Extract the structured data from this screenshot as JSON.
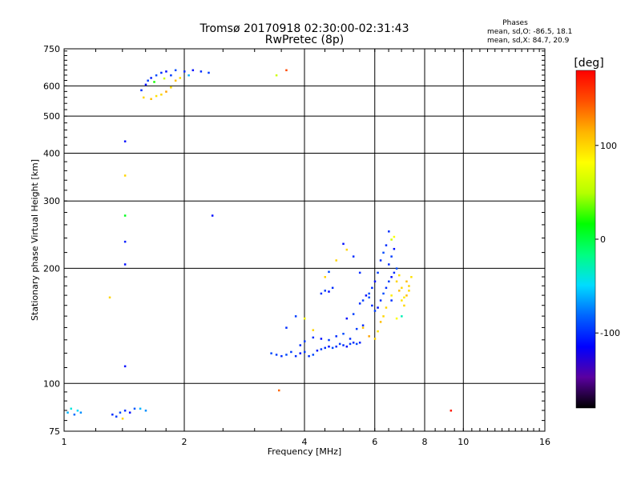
{
  "chart_data": {
    "type": "scatter",
    "title": "Tromsø 20170918 02:30:00-02:31:43",
    "subtitle": "RwPretec (8p)",
    "xlabel": "Frequency [MHz]",
    "ylabel": "Stationary phase Virtual Height [km]",
    "x_scale": "log",
    "y_scale": "log",
    "xlim": [
      1,
      16
    ],
    "ylim": [
      75,
      750
    ],
    "x_ticks": [
      1,
      2,
      4,
      6,
      8,
      10,
      16
    ],
    "y_ticks": [
      75,
      100,
      200,
      300,
      400,
      500,
      600,
      750
    ],
    "grid": true,
    "stats": {
      "heading": "Phases",
      "line_o": "mean, sd,O: -86.5, 18.1",
      "line_x": "mean, sd,X:  84.7, 20.9"
    },
    "colorbar": {
      "label": "[deg]",
      "range": [
        -180,
        180
      ],
      "ticks": [
        -100,
        0,
        100
      ],
      "colors": [
        "#000000",
        "#5a00a0",
        "#0000ff",
        "#0064ff",
        "#00dcff",
        "#00ff80",
        "#00ff00",
        "#b4ff00",
        "#ffff00",
        "#ffb400",
        "#ff5000",
        "#ff0000"
      ]
    },
    "series": [
      {
        "points": [
          [
            1.02,
            84,
            -60
          ],
          [
            1.04,
            86,
            -40
          ],
          [
            1.06,
            83,
            -80
          ],
          [
            1.08,
            85,
            -50
          ],
          [
            1.1,
            84,
            -70
          ],
          [
            1.32,
            83,
            -100
          ],
          [
            1.35,
            82,
            -95
          ],
          [
            1.38,
            84,
            -90
          ],
          [
            1.42,
            85,
            -100
          ],
          [
            1.46,
            84,
            -110
          ],
          [
            1.5,
            86,
            -85
          ],
          [
            1.55,
            86,
            -60
          ],
          [
            1.6,
            85,
            -70
          ],
          [
            1.4,
            81,
            100
          ],
          [
            1.56,
            585,
            -100
          ],
          [
            1.6,
            605,
            -110
          ],
          [
            1.62,
            620,
            -95
          ],
          [
            1.65,
            630,
            -105
          ],
          [
            1.7,
            640,
            -90
          ],
          [
            1.75,
            650,
            -100
          ],
          [
            1.8,
            655,
            -110
          ],
          [
            1.85,
            640,
            -95
          ],
          [
            1.9,
            660,
            -90
          ],
          [
            2.0,
            655,
            -100
          ],
          [
            2.1,
            660,
            -110
          ],
          [
            2.2,
            655,
            -100
          ],
          [
            2.3,
            650,
            -95
          ],
          [
            1.58,
            560,
            100
          ],
          [
            1.65,
            555,
            110
          ],
          [
            1.7,
            565,
            95
          ],
          [
            1.75,
            570,
            100
          ],
          [
            1.8,
            580,
            120
          ],
          [
            1.85,
            595,
            100
          ],
          [
            1.9,
            620,
            110
          ],
          [
            1.95,
            630,
            95
          ],
          [
            1.68,
            615,
            20
          ],
          [
            1.78,
            628,
            60
          ],
          [
            2.05,
            640,
            -60
          ],
          [
            3.4,
            640,
            60
          ],
          [
            3.6,
            660,
            150
          ],
          [
            1.42,
            430,
            -110
          ],
          [
            1.42,
            350,
            100
          ],
          [
            1.42,
            275,
            10
          ],
          [
            1.42,
            235,
            -105
          ],
          [
            1.42,
            205,
            -110
          ],
          [
            1.42,
            111,
            -110
          ],
          [
            2.35,
            275,
            -110
          ],
          [
            1.3,
            168,
            100
          ],
          [
            3.45,
            96,
            140
          ],
          [
            3.3,
            120,
            -90
          ],
          [
            3.4,
            119,
            -95
          ],
          [
            3.5,
            118,
            -100
          ],
          [
            3.6,
            119,
            -90
          ],
          [
            3.7,
            121,
            -95
          ],
          [
            3.8,
            118,
            -100
          ],
          [
            3.9,
            120,
            -110
          ],
          [
            4.0,
            121,
            -95
          ],
          [
            4.1,
            118,
            -100
          ],
          [
            4.2,
            119,
            -90
          ],
          [
            4.3,
            122,
            -105
          ],
          [
            4.4,
            123,
            -95
          ],
          [
            4.5,
            124,
            -100
          ],
          [
            4.6,
            125,
            -110
          ],
          [
            4.7,
            124,
            -90
          ],
          [
            4.8,
            125,
            -100
          ],
          [
            4.9,
            127,
            -95
          ],
          [
            5.0,
            126,
            -100
          ],
          [
            5.1,
            125,
            -110
          ],
          [
            5.2,
            127,
            -95
          ],
          [
            5.3,
            128,
            -100
          ],
          [
            5.4,
            127,
            -90
          ],
          [
            5.5,
            128,
            -105
          ],
          [
            3.9,
            126,
            -100
          ],
          [
            4.0,
            129,
            -95
          ],
          [
            4.2,
            132,
            -100
          ],
          [
            4.4,
            131,
            -110
          ],
          [
            4.6,
            130,
            -95
          ],
          [
            4.8,
            133,
            -100
          ],
          [
            5.0,
            135,
            -90
          ],
          [
            5.2,
            131,
            -100
          ],
          [
            5.4,
            139,
            -95
          ],
          [
            5.6,
            142,
            -100
          ],
          [
            5.1,
            148,
            -110
          ],
          [
            5.3,
            152,
            -95
          ],
          [
            3.6,
            140,
            -100
          ],
          [
            3.8,
            150,
            -95
          ],
          [
            4.0,
            148,
            80
          ],
          [
            4.2,
            138,
            100
          ],
          [
            4.4,
            172,
            -100
          ],
          [
            4.5,
            175,
            -95
          ],
          [
            4.6,
            174,
            -110
          ],
          [
            4.7,
            178,
            -100
          ],
          [
            4.5,
            190,
            100
          ],
          [
            4.6,
            196,
            -90
          ],
          [
            4.8,
            210,
            100
          ],
          [
            5.0,
            232,
            -110
          ],
          [
            5.1,
            224,
            100
          ],
          [
            5.3,
            215,
            -100
          ],
          [
            5.5,
            195,
            -100
          ],
          [
            5.5,
            162,
            -100
          ],
          [
            5.6,
            165,
            -95
          ],
          [
            5.7,
            170,
            -110
          ],
          [
            5.8,
            168,
            -90
          ],
          [
            5.9,
            160,
            -100
          ],
          [
            6.0,
            155,
            -95
          ],
          [
            6.1,
            158,
            -110
          ],
          [
            6.2,
            165,
            -100
          ],
          [
            6.3,
            172,
            -90
          ],
          [
            6.4,
            178,
            -100
          ],
          [
            6.5,
            185,
            -95
          ],
          [
            6.6,
            190,
            -110
          ],
          [
            6.7,
            195,
            -100
          ],
          [
            6.8,
            200,
            -90
          ],
          [
            6.5,
            205,
            -100
          ],
          [
            6.6,
            215,
            -95
          ],
          [
            6.7,
            225,
            -110
          ],
          [
            6.4,
            230,
            -100
          ],
          [
            6.3,
            220,
            -90
          ],
          [
            6.2,
            210,
            -100
          ],
          [
            6.1,
            195,
            -95
          ],
          [
            6.0,
            185,
            -110
          ],
          [
            5.9,
            178,
            -100
          ],
          [
            5.8,
            172,
            -90
          ],
          [
            6.5,
            250,
            -100
          ],
          [
            6.6,
            238,
            60
          ],
          [
            6.7,
            242,
            80
          ],
          [
            5.6,
            140,
            110
          ],
          [
            5.8,
            133,
            120
          ],
          [
            6.0,
            131,
            100
          ],
          [
            6.1,
            137,
            95
          ],
          [
            6.2,
            145,
            110
          ],
          [
            6.4,
            158,
            100
          ],
          [
            6.6,
            170,
            90
          ],
          [
            6.8,
            185,
            100
          ],
          [
            6.9,
            175,
            110
          ],
          [
            7.0,
            165,
            95
          ],
          [
            7.1,
            160,
            100
          ],
          [
            7.2,
            170,
            110
          ],
          [
            7.3,
            180,
            100
          ],
          [
            7.4,
            190,
            95
          ],
          [
            7.3,
            175,
            100
          ],
          [
            7.2,
            185,
            110
          ],
          [
            7.1,
            168,
            90
          ],
          [
            7.0,
            178,
            100
          ],
          [
            6.9,
            192,
            95
          ],
          [
            6.3,
            150,
            100
          ],
          [
            6.6,
            165,
            -100
          ],
          [
            6.8,
            148,
            80
          ],
          [
            7.0,
            150,
            -30
          ],
          [
            9.3,
            85,
            170
          ]
        ]
      }
    ]
  }
}
